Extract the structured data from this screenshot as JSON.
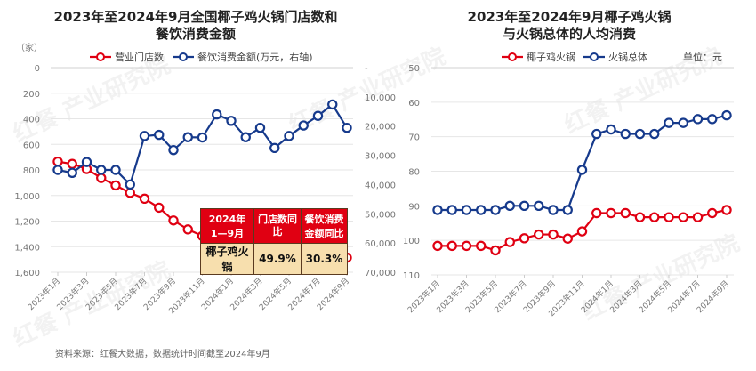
{
  "colors": {
    "red": "#e00012",
    "blue": "#163a8c",
    "grid": "#e6e6e6",
    "axis_text": "#777777"
  },
  "chart_data": [
    {
      "type": "line",
      "title": "2023年至2024年9月全国椰子鸡火锅门店数和",
      "title2": "餐饮消费金额",
      "ylabel": "（家）",
      "x": [
        "2023年1月",
        "2023年2月",
        "2023年3月",
        "2023年4月",
        "2023年5月",
        "2023年6月",
        "2023年7月",
        "2023年8月",
        "2023年9月",
        "2023年10月",
        "2023年11月",
        "2023年12月",
        "2024年1月",
        "2024年2月",
        "2024年3月",
        "2024年4月",
        "2024年5月",
        "2024年6月",
        "2024年7月",
        "2024年8月",
        "2024年9月"
      ],
      "x_tick_labels": [
        "2023年1月",
        "2023年3月",
        "2023年5月",
        "2023年7月",
        "2023年9月",
        "2023年11月",
        "2024年1月",
        "2024年3月",
        "2024年5月",
        "2024年7月",
        "2024年9月"
      ],
      "ylim": [
        0,
        1600
      ],
      "y_ticks": [
        "0",
        "200",
        "400",
        "600",
        "800",
        "1,000",
        "1,200",
        "1,400",
        "1,600"
      ],
      "y2lim": [
        0,
        70000
      ],
      "y2_ticks": [
        "-",
        "10,000",
        "20,000",
        "30,000",
        "40,000",
        "50,000",
        "60,000",
        "70,000"
      ],
      "grid": true,
      "legend": "top",
      "series": [
        {
          "name": "营业门店数",
          "axis": "left",
          "color": "#e00012",
          "values": [
            735,
            753,
            793,
            863,
            921,
            979,
            1025,
            1095,
            1195,
            1265,
            1316,
            1372,
            1372,
            1356,
            1344,
            1351,
            1372,
            1409,
            1437,
            1467,
            1486
          ]
        },
        {
          "name": "餐饮消费金额(万元，右轴)",
          "axis": "right",
          "color": "#163a8c",
          "values": [
            35000,
            34000,
            37700,
            35000,
            35000,
            30000,
            46600,
            47000,
            41800,
            46200,
            46100,
            54000,
            51800,
            46200,
            49400,
            42500,
            46600,
            50200,
            53500,
            57400,
            49400
          ]
        }
      ],
      "table": {
        "headers": [
          "2024年\n1—9月",
          "门店数同比",
          "餐饮消费金额同比"
        ],
        "header_lines": [
          [
            "2024年",
            "1—9月"
          ],
          [
            "门店数同",
            "比"
          ],
          [
            "餐饮消费",
            "金额同比"
          ]
        ],
        "row": [
          "椰子鸡火锅",
          "49.9%",
          "30.3%"
        ]
      }
    },
    {
      "type": "line",
      "title": "2023年至2024年9月椰子鸡火锅",
      "title2": "与火锅总体的人均消费",
      "unit": "单位：元",
      "x_tick_labels": [
        "2023年1月",
        "2023年3月",
        "2023年5月",
        "2023年7月",
        "2023年9月",
        "2023年11月",
        "2024年1月",
        "2024年3月",
        "2024年5月",
        "2024年7月",
        "2024年9月"
      ],
      "ylim": [
        50,
        110
      ],
      "y_ticks": [
        "50",
        "60",
        "70",
        "80",
        "90",
        "100",
        "110"
      ],
      "grid": true,
      "legend": "top",
      "series": [
        {
          "name": "椰子鸡火锅",
          "color": "#e00012",
          "values": [
            101.6,
            101.6,
            101.6,
            101.6,
            102.9,
            100.5,
            99.4,
            98.3,
            98.3,
            99.5,
            97.4,
            92.1,
            92.1,
            92.1,
            93.3,
            93.3,
            93.3,
            93.3,
            93.3,
            92.1,
            91.2
          ]
        },
        {
          "name": "火锅总体",
          "color": "#163a8c",
          "values": [
            91.2,
            91.2,
            91.2,
            91.2,
            91.2,
            90,
            90,
            90,
            91.2,
            91.2,
            79.6,
            69.2,
            67.9,
            69.2,
            69.2,
            69.2,
            66,
            66,
            64.9,
            64.9,
            63.8
          ]
        }
      ]
    }
  ],
  "source": "资料来源：红餐大数据，数据统计时间截至2024年9月",
  "watermark": "红餐 产业研究院"
}
